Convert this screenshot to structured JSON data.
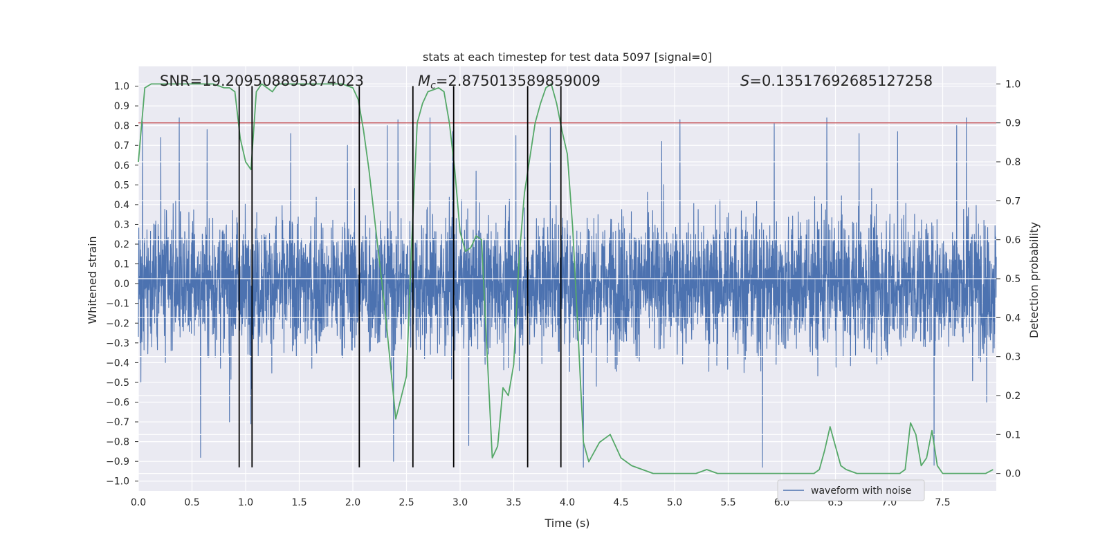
{
  "chart_data": {
    "type": "line",
    "title": "stats at each timestep for test data 5097 [signal=0]",
    "xlabel": "Time (s)",
    "ylabel": "Whitened strain",
    "ylabel_right": "Detection probability",
    "xlim": [
      0.0,
      8.0
    ],
    "ylim": [
      -1.05,
      1.1
    ],
    "ylim_right": [
      -0.045,
      1.045
    ],
    "x_ticks": [
      0.0,
      0.5,
      1.0,
      1.5,
      2.0,
      2.5,
      3.0,
      3.5,
      4.0,
      4.5,
      5.0,
      5.5,
      6.0,
      6.5,
      7.0,
      7.5
    ],
    "x_tick_labels": [
      "0.0",
      "0.5",
      "1.0",
      "1.5",
      "2.0",
      "2.5",
      "3.0",
      "3.5",
      "4.0",
      "4.5",
      "5.0",
      "5.5",
      "6.0",
      "6.5",
      "7.0",
      "7.5"
    ],
    "y_ticks": [
      1.0,
      0.9,
      0.8,
      0.7,
      0.6,
      0.5,
      0.4,
      0.3,
      0.2,
      0.1,
      0.0,
      -0.1,
      -0.2,
      -0.3,
      -0.4,
      -0.5,
      -0.6,
      -0.7,
      -0.8,
      -0.9,
      -1.0
    ],
    "y_tick_labels": [
      "1.0",
      "0.9",
      "0.8",
      "0.7",
      "0.6",
      "0.5",
      "0.4",
      "0.3",
      "0.2",
      "0.1",
      "0.0",
      "−0.1",
      "−0.2",
      "−0.3",
      "−0.4",
      "−0.5",
      "−0.6",
      "−0.7",
      "−0.8",
      "−0.9",
      "−1.0"
    ],
    "y_right_ticks": [
      1.0,
      0.9,
      0.8,
      0.7,
      0.6,
      0.5,
      0.4,
      0.3,
      0.2,
      0.1,
      0.0
    ],
    "y_right_tick_labels": [
      "1.0",
      "0.9",
      "0.8",
      "0.7",
      "0.6",
      "0.5",
      "0.4",
      "0.3",
      "0.2",
      "0.1",
      "0.0"
    ],
    "annotations": {
      "snr": "SNR=19.209508895874023",
      "mc_value": "=2.875013589859009",
      "s_value": "=0.13517692685127258"
    },
    "legend": {
      "label": "waveform with noise",
      "position": "lower-right"
    },
    "grid": true,
    "threshold_probability": 0.9,
    "series": [
      {
        "name": "waveform with noise",
        "axis": "left",
        "color": "#4c72b0",
        "style": "dense noise trace",
        "typical_amplitude": 0.38,
        "peaks": [
          {
            "x": 0.04,
            "y": 0.82
          },
          {
            "x": 0.21,
            "y": 0.74
          },
          {
            "x": 0.38,
            "y": 0.84
          },
          {
            "x": 0.58,
            "y": -0.88
          },
          {
            "x": 0.64,
            "y": 0.78
          },
          {
            "x": 0.85,
            "y": -0.7
          },
          {
            "x": 1.05,
            "y": -0.71
          },
          {
            "x": 1.42,
            "y": 0.76
          },
          {
            "x": 1.95,
            "y": 0.7
          },
          {
            "x": 2.32,
            "y": 0.8
          },
          {
            "x": 2.38,
            "y": -0.9
          },
          {
            "x": 2.42,
            "y": 0.83
          },
          {
            "x": 2.72,
            "y": 0.84
          },
          {
            "x": 2.93,
            "y": 0.77
          },
          {
            "x": 3.08,
            "y": -0.82
          },
          {
            "x": 3.52,
            "y": 0.75
          },
          {
            "x": 3.84,
            "y": 0.79
          },
          {
            "x": 4.15,
            "y": -0.93
          },
          {
            "x": 4.88,
            "y": 0.72
          },
          {
            "x": 5.05,
            "y": 0.83
          },
          {
            "x": 5.82,
            "y": -0.93
          },
          {
            "x": 5.93,
            "y": 0.81
          },
          {
            "x": 6.42,
            "y": 0.84
          },
          {
            "x": 6.72,
            "y": 0.76
          },
          {
            "x": 7.08,
            "y": 0.77
          },
          {
            "x": 7.42,
            "y": -0.92
          },
          {
            "x": 7.63,
            "y": 0.8
          },
          {
            "x": 7.72,
            "y": 0.84
          },
          {
            "x": 7.91,
            "y": -0.6
          }
        ]
      },
      {
        "name": "",
        "axis": "right",
        "color": "#55a868",
        "x": [
          0.0,
          0.06,
          0.12,
          0.2,
          0.3,
          0.4,
          0.5,
          0.6,
          0.7,
          0.8,
          0.85,
          0.9,
          0.95,
          1.0,
          1.05,
          1.1,
          1.15,
          1.2,
          1.25,
          1.3,
          1.35,
          1.4,
          1.5,
          1.6,
          1.7,
          1.8,
          1.9,
          2.0,
          2.05,
          2.1,
          2.15,
          2.2,
          2.3,
          2.4,
          2.5,
          2.55,
          2.6,
          2.65,
          2.7,
          2.8,
          2.85,
          2.9,
          2.95,
          3.0,
          3.05,
          3.1,
          3.15,
          3.2,
          3.25,
          3.3,
          3.35,
          3.4,
          3.45,
          3.5,
          3.55,
          3.6,
          3.7,
          3.75,
          3.8,
          3.85,
          3.9,
          3.95,
          4.0,
          4.05,
          4.1,
          4.15,
          4.2,
          4.3,
          4.4,
          4.5,
          4.6,
          4.7,
          4.8,
          4.9,
          5.0,
          5.1,
          5.2,
          5.3,
          5.4,
          5.5,
          5.6,
          5.7,
          5.8,
          5.9,
          6.0,
          6.1,
          6.2,
          6.3,
          6.35,
          6.4,
          6.45,
          6.5,
          6.55,
          6.6,
          6.7,
          6.8,
          6.9,
          7.0,
          7.1,
          7.15,
          7.2,
          7.25,
          7.3,
          7.35,
          7.4,
          7.45,
          7.5,
          7.6,
          7.7,
          7.8,
          7.9,
          7.97
        ],
        "values": [
          0.8,
          0.99,
          1.0,
          1.0,
          1.0,
          1.0,
          1.0,
          1.0,
          1.0,
          0.99,
          0.99,
          0.98,
          0.86,
          0.8,
          0.78,
          0.98,
          1.0,
          0.99,
          0.98,
          1.0,
          1.0,
          1.0,
          1.0,
          1.0,
          1.0,
          1.0,
          1.0,
          0.99,
          0.96,
          0.88,
          0.78,
          0.66,
          0.42,
          0.14,
          0.25,
          0.6,
          0.9,
          0.95,
          0.98,
          0.99,
          0.98,
          0.9,
          0.78,
          0.62,
          0.57,
          0.58,
          0.61,
          0.6,
          0.32,
          0.04,
          0.07,
          0.22,
          0.2,
          0.28,
          0.55,
          0.72,
          0.9,
          0.95,
          0.99,
          1.0,
          0.95,
          0.88,
          0.82,
          0.63,
          0.36,
          0.08,
          0.03,
          0.08,
          0.1,
          0.04,
          0.02,
          0.01,
          0.0,
          0.0,
          0.0,
          0.0,
          0.0,
          0.01,
          0.0,
          0.0,
          0.0,
          0.0,
          0.0,
          0.0,
          0.0,
          0.0,
          0.0,
          0.0,
          0.01,
          0.06,
          0.12,
          0.07,
          0.02,
          0.01,
          0.0,
          0.0,
          0.0,
          0.0,
          0.0,
          0.01,
          0.13,
          0.1,
          0.02,
          0.04,
          0.11,
          0.02,
          0.0,
          0.0,
          0.0,
          0.0,
          0.0,
          0.01
        ]
      }
    ],
    "threshold_line": {
      "axis": "right",
      "value": 0.9,
      "color": "#c44e52"
    },
    "vertical_markers": {
      "x": [
        0.94,
        1.06,
        2.06,
        2.56,
        2.94,
        3.63,
        3.94
      ],
      "color": "#000000",
      "y_from": -0.93,
      "y_to": 1.0
    }
  }
}
